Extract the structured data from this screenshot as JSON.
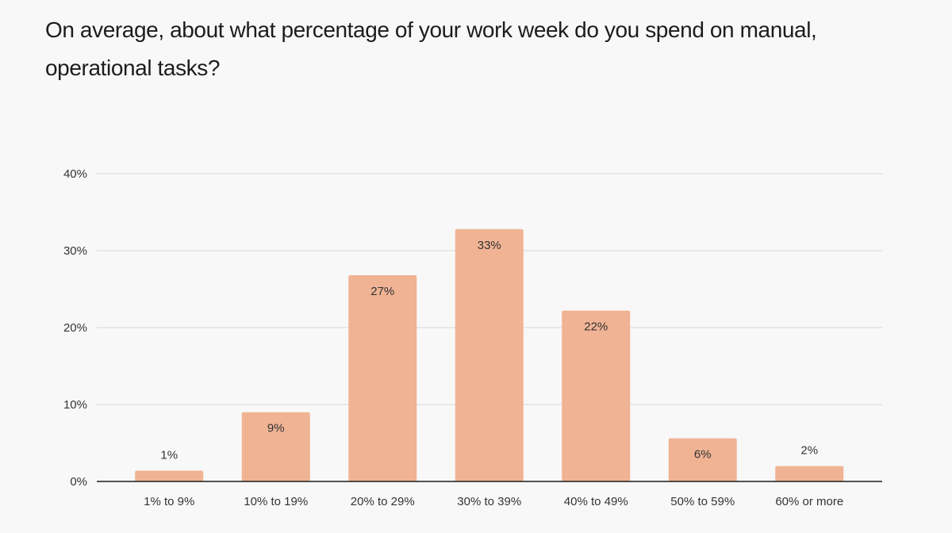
{
  "chart_data": {
    "type": "bar",
    "title": "On average, about what percentage of your work week do you spend on manual, operational tasks?",
    "xlabel": "",
    "ylabel": "",
    "categories": [
      "1% to 9%",
      "10% to 19%",
      "20% to 29%",
      "30% to 39%",
      "40% to 49%",
      "50% to 59%",
      "60% or more"
    ],
    "values": [
      1.4,
      9.0,
      26.8,
      32.8,
      22.2,
      5.6,
      2.0
    ],
    "data_labels": [
      "1%",
      "9%",
      "27%",
      "33%",
      "22%",
      "6%",
      "2%"
    ],
    "ylim": [
      0,
      40
    ],
    "yticks": [
      0,
      10,
      20,
      30,
      40
    ],
    "ytick_labels": [
      "0%",
      "10%",
      "20%",
      "30%",
      "40%"
    ],
    "grid": true,
    "legend": "none",
    "bar_color": "#f0b394"
  }
}
